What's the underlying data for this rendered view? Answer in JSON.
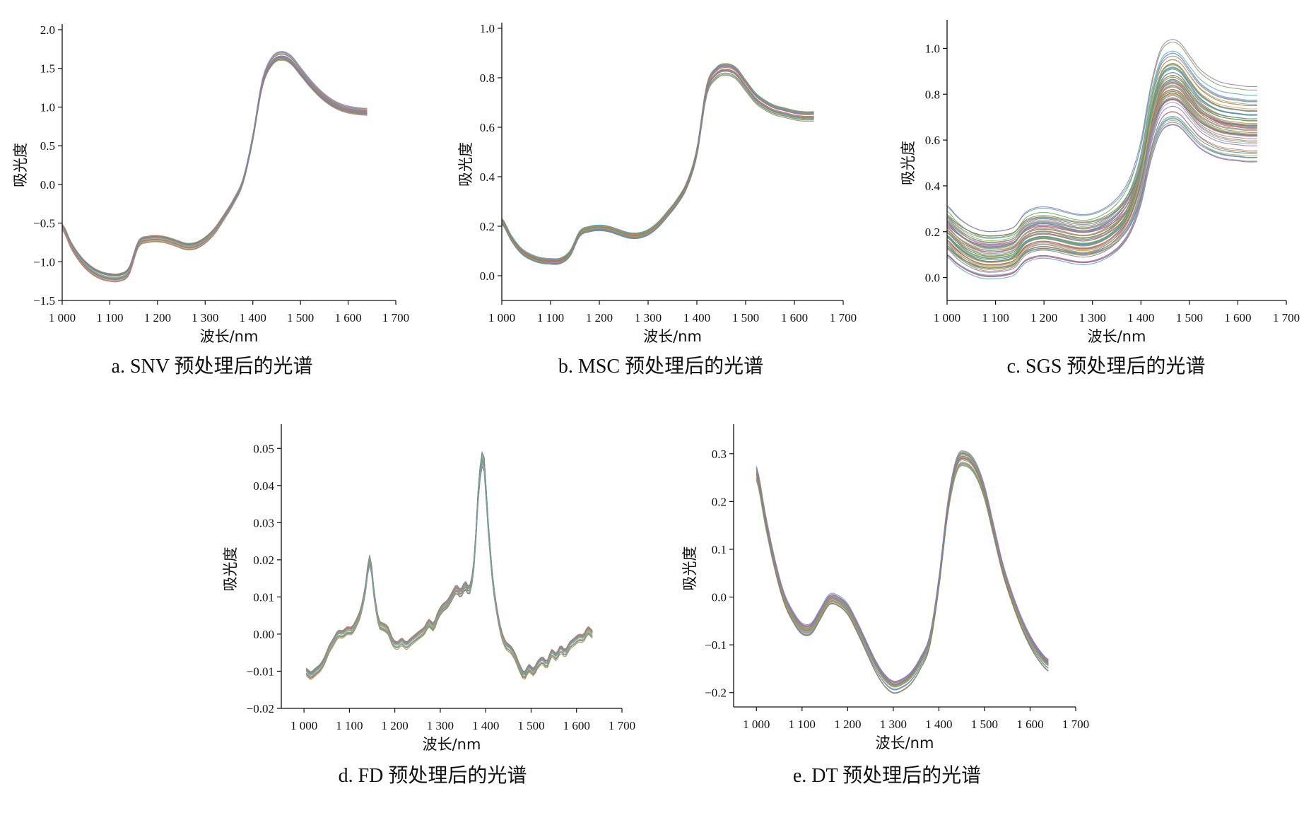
{
  "colors": {
    "palette": [
      "#7b8fb5",
      "#5aa06e",
      "#c87b5a",
      "#8e79b8",
      "#b5a05a",
      "#5aa7b5",
      "#b56a8f",
      "#7fa34f",
      "#a86f4a",
      "#6f88c9",
      "#c2b35f",
      "#4f9a8c",
      "#a05a6e",
      "#8aa2c8",
      "#9aba6a",
      "#b08abf"
    ]
  },
  "chart_data": [
    {
      "type": "line",
      "panel": "a",
      "caption": "a. SNV 预处理后的光谱",
      "xlabel": "波长/nm",
      "ylabel": "吸光度",
      "xlim": [
        1000,
        1700
      ],
      "ylim": [
        -1.5,
        2.0
      ],
      "xticks": [
        1000,
        1100,
        1200,
        1300,
        1400,
        1500,
        1600,
        1700
      ],
      "xtick_labels": [
        "1 000",
        "1 100",
        "1 200",
        "1 300",
        "1 400",
        "1 500",
        "1 600",
        "1 700"
      ],
      "yticks": [
        -1.5,
        -1.0,
        -0.5,
        0.0,
        0.5,
        1.0,
        1.5,
        2.0
      ],
      "ytick_labels": [
        "−1.5",
        "−1.0",
        "−0.5",
        "0.0",
        "0.5",
        "1.0",
        "1.5",
        "2.0"
      ],
      "grid": false,
      "n_curves": 26,
      "spread": 0.04,
      "x": [
        1000,
        1020,
        1040,
        1060,
        1080,
        1100,
        1120,
        1140,
        1160,
        1180,
        1200,
        1220,
        1240,
        1260,
        1280,
        1300,
        1320,
        1340,
        1360,
        1380,
        1400,
        1420,
        1440,
        1460,
        1480,
        1500,
        1520,
        1540,
        1560,
        1580,
        1600,
        1620,
        1640
      ],
      "y": [
        -0.55,
        -0.8,
        -0.98,
        -1.1,
        -1.17,
        -1.2,
        -1.2,
        -1.12,
        -0.77,
        -0.71,
        -0.7,
        -0.72,
        -0.76,
        -0.8,
        -0.79,
        -0.72,
        -0.6,
        -0.42,
        -0.22,
        0.05,
        0.6,
        1.3,
        1.58,
        1.65,
        1.6,
        1.45,
        1.3,
        1.17,
        1.07,
        1.0,
        0.96,
        0.94,
        0.93
      ]
    },
    {
      "type": "line",
      "panel": "b",
      "caption": "b. MSC 预处理后的光谱",
      "xlabel": "波长/nm",
      "ylabel": "吸光度",
      "xlim": [
        1000,
        1700
      ],
      "ylim": [
        -0.1,
        1.0
      ],
      "xticks": [
        1000,
        1100,
        1200,
        1300,
        1400,
        1500,
        1600,
        1700
      ],
      "xtick_labels": [
        "1 000",
        "1 100",
        "1 200",
        "1 300",
        "1 400",
        "1 500",
        "1 600",
        "1 700"
      ],
      "yticks": [
        0.0,
        0.2,
        0.4,
        0.6,
        0.8,
        1.0
      ],
      "ytick_labels": [
        "0.0",
        "0.2",
        "0.4",
        "0.6",
        "0.8",
        "1.0"
      ],
      "grid": false,
      "n_curves": 26,
      "spread": 0.012,
      "x": [
        1000,
        1020,
        1040,
        1060,
        1080,
        1100,
        1120,
        1140,
        1160,
        1180,
        1200,
        1220,
        1240,
        1260,
        1280,
        1300,
        1320,
        1340,
        1360,
        1380,
        1400,
        1420,
        1440,
        1460,
        1480,
        1500,
        1520,
        1540,
        1560,
        1580,
        1600,
        1620,
        1640
      ],
      "y": [
        0.22,
        0.15,
        0.1,
        0.075,
        0.062,
        0.058,
        0.06,
        0.09,
        0.17,
        0.188,
        0.193,
        0.188,
        0.175,
        0.163,
        0.162,
        0.175,
        0.205,
        0.25,
        0.3,
        0.37,
        0.5,
        0.75,
        0.82,
        0.835,
        0.82,
        0.77,
        0.72,
        0.69,
        0.67,
        0.66,
        0.65,
        0.645,
        0.645
      ]
    },
    {
      "type": "line",
      "panel": "c",
      "caption": "c. SGS 预处理后的光谱",
      "xlabel": "波长/nm",
      "ylabel": "吸光度",
      "xlim": [
        1000,
        1700
      ],
      "ylim": [
        -0.1,
        1.1
      ],
      "xticks": [
        1000,
        1100,
        1200,
        1300,
        1400,
        1500,
        1600,
        1700
      ],
      "xtick_labels": [
        "1 000",
        "1 100",
        "1 200",
        "1 300",
        "1 400",
        "1 500",
        "1 600",
        "1 700"
      ],
      "yticks": [
        0.0,
        0.2,
        0.4,
        0.6,
        0.8,
        1.0
      ],
      "ytick_labels": [
        "0.0",
        "0.2",
        "0.4",
        "0.6",
        "0.8",
        "1.0"
      ],
      "grid": false,
      "n_curves": 60,
      "spread": 0.17,
      "x": [
        1000,
        1020,
        1040,
        1060,
        1080,
        1100,
        1120,
        1140,
        1160,
        1180,
        1200,
        1220,
        1240,
        1260,
        1280,
        1300,
        1320,
        1340,
        1360,
        1380,
        1400,
        1420,
        1440,
        1460,
        1480,
        1500,
        1520,
        1540,
        1560,
        1580,
        1600,
        1620,
        1640
      ],
      "y": [
        0.2,
        0.16,
        0.13,
        0.11,
        0.1,
        0.1,
        0.105,
        0.12,
        0.17,
        0.19,
        0.195,
        0.19,
        0.18,
        0.17,
        0.165,
        0.17,
        0.185,
        0.21,
        0.25,
        0.32,
        0.45,
        0.66,
        0.8,
        0.84,
        0.83,
        0.78,
        0.73,
        0.7,
        0.68,
        0.67,
        0.665,
        0.66,
        0.66
      ]
    },
    {
      "type": "line",
      "panel": "d",
      "caption": "d. FD 预处理后的光谱",
      "xlabel": "波长/nm",
      "ylabel": "吸光度",
      "xlim": [
        950,
        1700
      ],
      "ylim": [
        -0.02,
        0.055
      ],
      "xticks": [
        1000,
        1100,
        1200,
        1300,
        1400,
        1500,
        1600,
        1700
      ],
      "xtick_labels": [
        "1 000",
        "1 100",
        "1 200",
        "1 300",
        "1 400",
        "1 500",
        "1 600",
        "1 700"
      ],
      "yticks": [
        -0.02,
        -0.01,
        0.0,
        0.01,
        0.02,
        0.03,
        0.04,
        0.05
      ],
      "ytick_labels": [
        "−0.02",
        "−0.01",
        "0.00",
        "0.01",
        "0.02",
        "0.03",
        "0.04",
        "0.05"
      ],
      "grid": false,
      "n_curves": 22,
      "spread": 0.0012,
      "x": [
        1005,
        1015,
        1025,
        1035,
        1045,
        1055,
        1065,
        1075,
        1085,
        1095,
        1105,
        1115,
        1125,
        1135,
        1145,
        1155,
        1165,
        1175,
        1185,
        1195,
        1205,
        1215,
        1225,
        1235,
        1245,
        1255,
        1265,
        1275,
        1285,
        1295,
        1305,
        1315,
        1325,
        1335,
        1345,
        1355,
        1365,
        1375,
        1385,
        1395,
        1405,
        1415,
        1425,
        1435,
        1445,
        1455,
        1465,
        1475,
        1485,
        1495,
        1505,
        1515,
        1525,
        1535,
        1545,
        1555,
        1565,
        1575,
        1585,
        1595,
        1605,
        1615,
        1625,
        1635
      ],
      "y": [
        -0.01,
        -0.011,
        -0.01,
        -0.009,
        -0.007,
        -0.004,
        -0.002,
        0.0,
        0.0,
        0.001,
        0.001,
        0.003,
        0.006,
        0.012,
        0.02,
        0.01,
        0.003,
        0.002,
        0.001,
        -0.002,
        -0.003,
        -0.002,
        -0.003,
        -0.002,
        -0.001,
        0.0,
        0.001,
        0.003,
        0.002,
        0.005,
        0.007,
        0.008,
        0.01,
        0.012,
        0.011,
        0.013,
        0.012,
        0.02,
        0.04,
        0.047,
        0.03,
        0.015,
        0.006,
        0.0,
        -0.003,
        -0.004,
        -0.006,
        -0.009,
        -0.011,
        -0.009,
        -0.01,
        -0.008,
        -0.007,
        -0.008,
        -0.005,
        -0.006,
        -0.004,
        -0.005,
        -0.003,
        -0.002,
        -0.001,
        -0.001,
        0.001,
        0.0
      ]
    },
    {
      "type": "line",
      "panel": "e",
      "caption": "e. DT 预处理后的光谱",
      "xlabel": "波长/nm",
      "ylabel": "吸光度",
      "xlim": [
        950,
        1700
      ],
      "ylim": [
        -0.23,
        0.35
      ],
      "xticks": [
        1000,
        1100,
        1200,
        1300,
        1400,
        1500,
        1600,
        1700
      ],
      "xtick_labels": [
        "1 000",
        "1 100",
        "1 200",
        "1 300",
        "1 400",
        "1 500",
        "1 600",
        "1 700"
      ],
      "yticks": [
        -0.2,
        -0.1,
        0.0,
        0.1,
        0.2,
        0.3
      ],
      "ytick_labels": [
        "−0.2",
        "−0.1",
        "0.0",
        "0.1",
        "0.2",
        "0.3"
      ],
      "grid": false,
      "n_curves": 26,
      "spread": 0.012,
      "x": [
        1000,
        1020,
        1040,
        1060,
        1080,
        1100,
        1120,
        1140,
        1160,
        1180,
        1200,
        1220,
        1240,
        1260,
        1280,
        1300,
        1320,
        1340,
        1360,
        1380,
        1400,
        1420,
        1440,
        1460,
        1480,
        1500,
        1520,
        1540,
        1560,
        1580,
        1600,
        1620,
        1640
      ],
      "y": [
        0.26,
        0.16,
        0.07,
        0.0,
        -0.04,
        -0.065,
        -0.065,
        -0.035,
        -0.005,
        -0.008,
        -0.025,
        -0.06,
        -0.1,
        -0.14,
        -0.17,
        -0.185,
        -0.18,
        -0.165,
        -0.135,
        -0.09,
        0.03,
        0.19,
        0.28,
        0.29,
        0.27,
        0.22,
        0.14,
        0.06,
        0.0,
        -0.05,
        -0.09,
        -0.12,
        -0.14
      ]
    }
  ]
}
